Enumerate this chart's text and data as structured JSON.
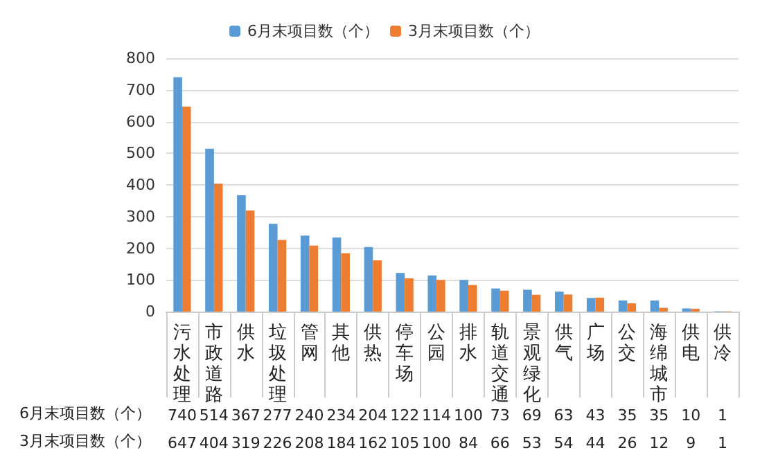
{
  "chart_data": {
    "type": "bar",
    "categories": [
      "污水处理",
      "市政道路",
      "供水",
      "垃圾处理",
      "管网",
      "其他",
      "供热",
      "停车场",
      "公园",
      "排水",
      "轨道交通",
      "景观绿化",
      "供气",
      "广场",
      "公交",
      "海绵城市",
      "供电",
      "供冷"
    ],
    "series": [
      {
        "name": "6月末项目数（个）",
        "color": "#5b9bd5",
        "values": [
          740,
          514,
          367,
          277,
          240,
          234,
          204,
          122,
          114,
          100,
          73,
          69,
          63,
          43,
          35,
          35,
          10,
          1
        ]
      },
      {
        "name": "3月末项目数（个）",
        "color": "#ed7d31",
        "values": [
          647,
          404,
          319,
          226,
          208,
          184,
          162,
          105,
          100,
          84,
          66,
          53,
          54,
          44,
          26,
          12,
          9,
          1
        ]
      }
    ],
    "ylim": [
      0,
      800
    ],
    "yticks": [
      0,
      100,
      200,
      300,
      400,
      500,
      600,
      700,
      800
    ],
    "grid": "y",
    "legend": "top",
    "data_labels": true
  }
}
